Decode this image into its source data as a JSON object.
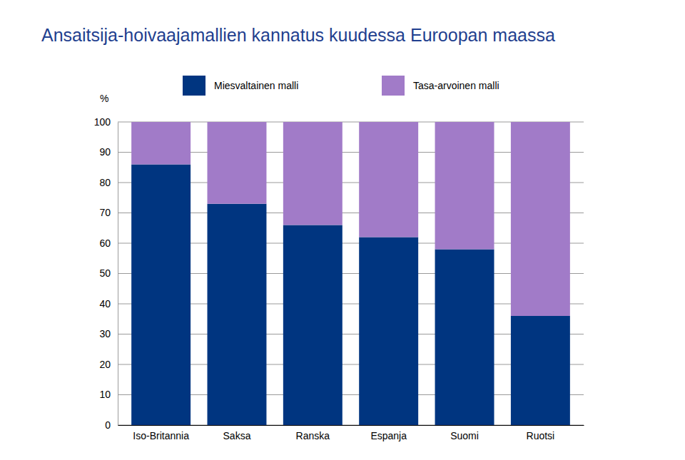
{
  "chart_data": {
    "type": "bar",
    "stacked": true,
    "title": "Ansaitsija-hoivaajamallien kannatus kuudessa Euroopan maassa",
    "ylabel": "%",
    "categories": [
      "Iso-Britannia",
      "Saksa",
      "Ranska",
      "Espanja",
      "Suomi",
      "Ruotsi"
    ],
    "series": [
      {
        "name": "Miesvaltainen malli",
        "color": "#003580",
        "values": [
          86,
          73,
          66,
          62,
          58,
          36
        ]
      },
      {
        "name": "Tasa-arvoinen malli",
        "color": "#a17bc8",
        "values": [
          14,
          27,
          34,
          38,
          42,
          64
        ]
      }
    ],
    "ylim": [
      0,
      100
    ],
    "yticks": [
      0,
      10,
      20,
      30,
      40,
      50,
      60,
      70,
      80,
      90,
      100
    ],
    "grid": true,
    "legend": "top"
  }
}
